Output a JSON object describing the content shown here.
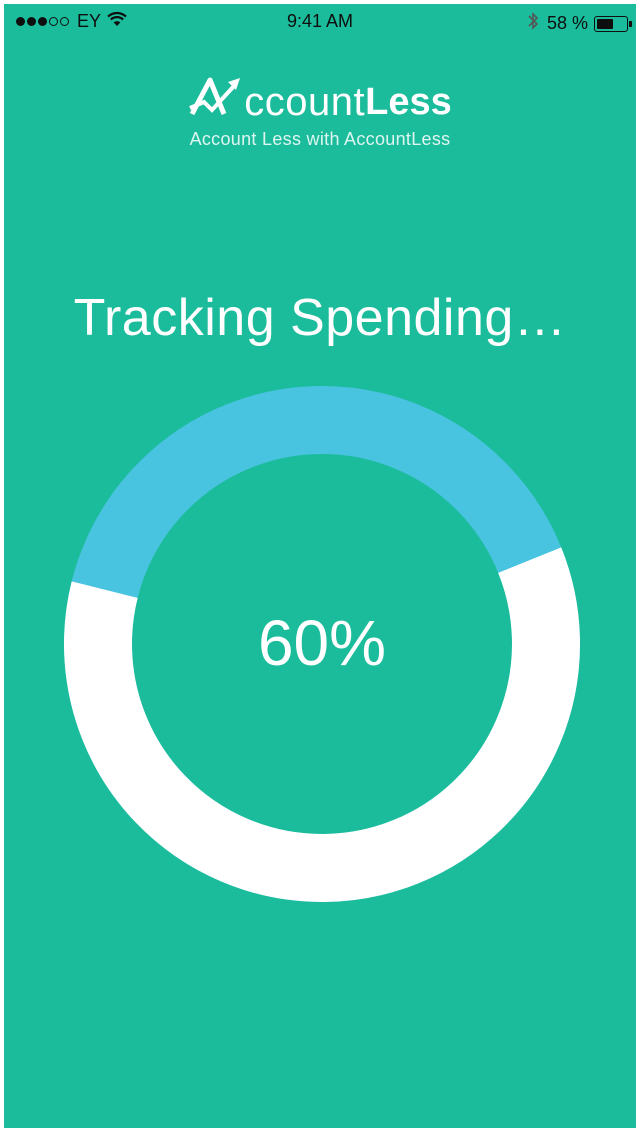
{
  "status_bar": {
    "carrier": "EY",
    "time": "9:41 AM",
    "battery_percent": "58 %",
    "battery_level": 0.58,
    "signal_bars_filled": 3,
    "signal_bars_total": 5,
    "icons": [
      "signal-dots-icon",
      "wifi-icon",
      "bluetooth-icon",
      "battery-icon"
    ]
  },
  "logo": {
    "name_light": "ccount",
    "name_bold": "Less",
    "tagline": "Account Less with AccountLess"
  },
  "heading": "Tracking Spending…",
  "progress": {
    "value": 0.6,
    "label": "60%",
    "colors": {
      "background": "#1bbc9b",
      "filled": "#ffffff",
      "remaining": "#48c3e0"
    }
  }
}
